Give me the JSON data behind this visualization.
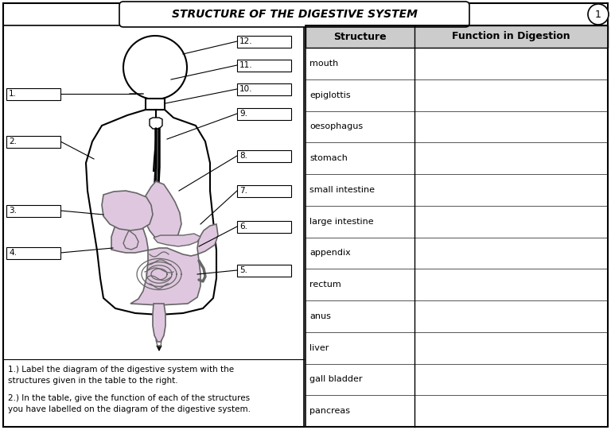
{
  "title": "STRUCTURE OF THE DIGESTIVE SYSTEM",
  "page_num": "1",
  "background_color": "#ffffff",
  "table_structures": [
    "mouth",
    "epiglottis",
    "oesophagus",
    "stomach",
    "small intestine",
    "large intestine",
    "appendix",
    "rectum",
    "anus",
    "liver",
    "gall bladder",
    "pancreas"
  ],
  "col1_header": "Structure",
  "col2_header": "Function in Digestion",
  "label_numbers_right": [
    "12.",
    "11.",
    "10.",
    "9.",
    "8.",
    "7.",
    "6.",
    "5."
  ],
  "label_numbers_left": [
    "1.",
    "2.",
    "3.",
    "4."
  ],
  "instruction1": "1.) Label the diagram of the digestive system with the\nstructures given in the table to the right.",
  "instruction2": "2.) In the table, give the function of each of the structures\nyou have labelled on the diagram of the digestive system.",
  "organ_fill": "#dfc8df",
  "organ_stroke": "#666666",
  "line_color": "#000000"
}
